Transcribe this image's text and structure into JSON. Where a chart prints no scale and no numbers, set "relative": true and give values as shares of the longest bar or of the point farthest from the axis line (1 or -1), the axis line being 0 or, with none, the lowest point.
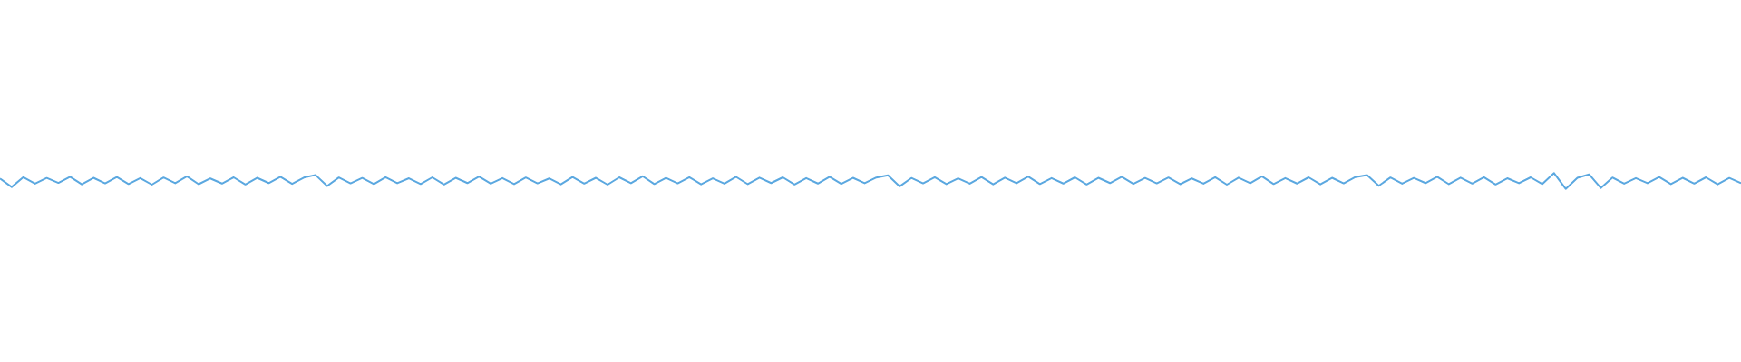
{
  "chart_data": {
    "type": "line",
    "relative": true,
    "color": "#5ba8e0",
    "categories": [
      null,
      null,
      null,
      null,
      null,
      null,
      null,
      null,
      null,
      null,
      null,
      null,
      null,
      null,
      null,
      null,
      null,
      null,
      null,
      null,
      null,
      null,
      null,
      null,
      null,
      null,
      null,
      null,
      null,
      null,
      null,
      null,
      null,
      null,
      null,
      null,
      null,
      null,
      null,
      null,
      null,
      null,
      null,
      null,
      null,
      null,
      null,
      null,
      null,
      null,
      null,
      null,
      null,
      null,
      null,
      null,
      null,
      null,
      null,
      null,
      null,
      null,
      null,
      null,
      null,
      null,
      null,
      null,
      null,
      null,
      null,
      null,
      null,
      null,
      null,
      null,
      null,
      null,
      null,
      null,
      null,
      null,
      null,
      null,
      null,
      null,
      null,
      null,
      null,
      null,
      null,
      null,
      null,
      null,
      null,
      null,
      null,
      null,
      null,
      null,
      null,
      null,
      null,
      null,
      null,
      null,
      null,
      null,
      null,
      null,
      null,
      null,
      null,
      null,
      null,
      null,
      null,
      null,
      null,
      null,
      null,
      null,
      null,
      null,
      null,
      null,
      null,
      null,
      null,
      null,
      null,
      null,
      null,
      null,
      null,
      null,
      null,
      null,
      null,
      null,
      null,
      null,
      null,
      null,
      null,
      null,
      null,
      null,
      null,
      null
    ],
    "values": [
      0.65,
      0.12,
      0.74,
      0.33,
      0.69,
      0.38,
      0.77,
      0.29,
      0.7,
      0.35,
      0.75,
      0.31,
      0.68,
      0.27,
      0.72,
      0.36,
      0.79,
      0.3,
      0.66,
      0.34,
      0.73,
      0.28,
      0.7,
      0.37,
      0.76,
      0.32,
      0.71,
      0.88,
      0.18,
      0.72,
      0.35,
      0.69,
      0.3,
      0.74,
      0.36,
      0.67,
      0.31,
      0.73,
      0.28,
      0.7,
      0.37,
      0.78,
      0.33,
      0.68,
      0.3,
      0.72,
      0.35,
      0.66,
      0.29,
      0.75,
      0.34,
      0.7,
      0.27,
      0.73,
      0.36,
      0.8,
      0.31,
      0.69,
      0.35,
      0.74,
      0.29,
      0.67,
      0.33,
      0.76,
      0.3,
      0.71,
      0.37,
      0.73,
      0.28,
      0.68,
      0.34,
      0.77,
      0.32,
      0.7,
      0.36,
      0.72,
      0.86,
      0.16,
      0.69,
      0.35,
      0.74,
      0.3,
      0.67,
      0.33,
      0.75,
      0.29,
      0.71,
      0.36,
      0.78,
      0.31,
      0.68,
      0.34,
      0.73,
      0.28,
      0.7,
      0.37,
      0.76,
      0.32,
      0.69,
      0.35,
      0.72,
      0.3,
      0.66,
      0.33,
      0.74,
      0.27,
      0.71,
      0.36,
      0.79,
      0.31,
      0.68,
      0.34,
      0.73,
      0.29,
      0.7,
      0.35,
      0.75,
      0.88,
      0.2,
      0.72,
      0.33,
      0.69,
      0.37,
      0.77,
      0.3,
      0.71,
      0.34,
      0.74,
      0.28,
      0.67,
      0.36,
      0.73,
      0.31,
      1,
      0,
      0.7,
      0.92,
      0.06,
      0.72,
      0.33,
      0.68,
      0.36,
      0.75,
      0.3,
      0.7,
      0.34,
      0.73,
      0.29,
      0.69,
      0.36
    ]
  }
}
